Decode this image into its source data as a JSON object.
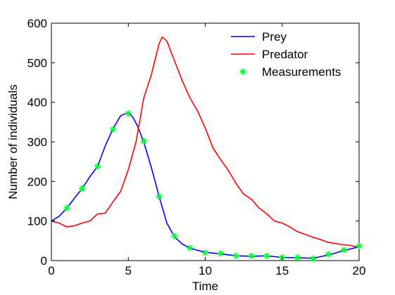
{
  "chart_data": {
    "type": "line",
    "xlabel": "Time",
    "ylabel": "Number of individuals",
    "xlim": [
      0,
      20
    ],
    "ylim": [
      0,
      600
    ],
    "xticks": [
      0,
      5,
      10,
      15,
      20
    ],
    "yticks": [
      0,
      100,
      200,
      300,
      400,
      500,
      600
    ],
    "grid": false,
    "legend_position": "top-right",
    "series": [
      {
        "name": "Prey",
        "color": "#0000ff",
        "style": "line",
        "x": [
          0,
          0.5,
          1,
          1.5,
          2,
          2.5,
          3,
          3.5,
          4,
          4.5,
          5,
          5.3,
          5.6,
          6,
          6.5,
          7,
          7.5,
          8,
          8.5,
          9,
          9.5,
          10,
          11,
          12,
          13,
          14,
          15,
          16,
          17,
          18,
          19,
          20
        ],
        "y": [
          100,
          112,
          132,
          158,
          182,
          212,
          238,
          290,
          333,
          366,
          375,
          362,
          340,
          300,
          235,
          163,
          95,
          60,
          42,
          32,
          26,
          21,
          17,
          12,
          11,
          12,
          8,
          7,
          6,
          14,
          25,
          35
        ]
      },
      {
        "name": "Predator",
        "color": "#ff0000",
        "style": "line",
        "x": [
          0,
          0.5,
          1,
          1.5,
          2,
          2.5,
          3,
          3.5,
          4,
          4.5,
          5,
          5.5,
          6,
          6.5,
          7,
          7.2,
          7.5,
          8,
          8.5,
          9,
          9.5,
          10,
          10.5,
          11,
          11.5,
          12,
          12.5,
          13,
          13.5,
          14,
          14.5,
          15,
          15.5,
          16,
          16.5,
          17,
          17.5,
          18,
          18.5,
          19,
          19.5,
          20
        ],
        "y": [
          100,
          95,
          85,
          88,
          95,
          100,
          118,
          120,
          148,
          175,
          230,
          300,
          410,
          470,
          548,
          565,
          555,
          505,
          455,
          412,
          378,
          335,
          285,
          255,
          228,
          195,
          168,
          155,
          133,
          118,
          100,
          95,
          85,
          73,
          66,
          59,
          53,
          46,
          43,
          40,
          38,
          33
        ]
      },
      {
        "name": "Measurements",
        "color": "#00ff33",
        "style": "markers",
        "marker": "asterisk",
        "x": [
          1,
          2,
          3,
          4,
          5,
          6,
          7,
          8,
          9,
          10,
          11,
          12,
          13,
          14,
          15,
          16,
          17,
          18,
          19,
          20
        ],
        "y": [
          133,
          182,
          238,
          332,
          372,
          302,
          162,
          62,
          32,
          20,
          18,
          12,
          12,
          12,
          8,
          8,
          5,
          16,
          27,
          37
        ]
      }
    ]
  }
}
